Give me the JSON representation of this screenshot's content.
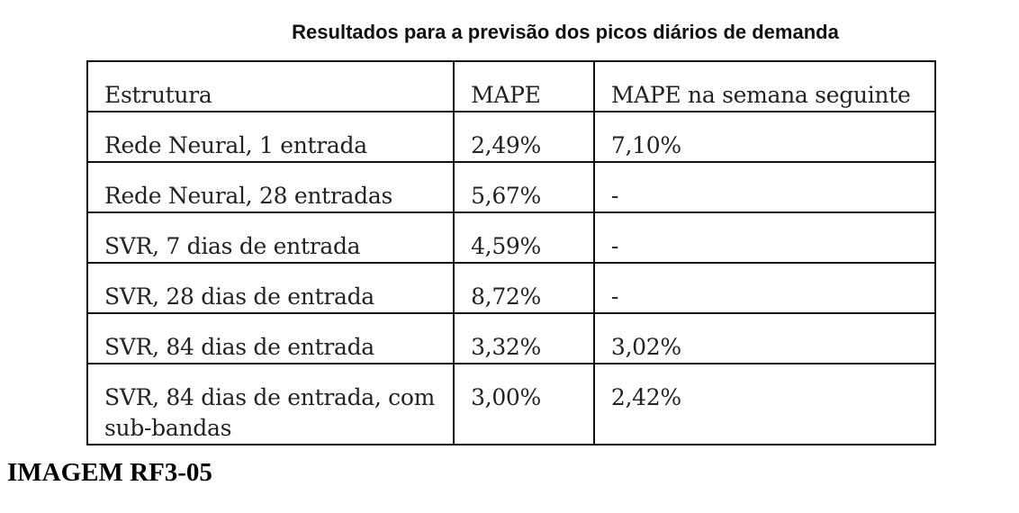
{
  "title": "Resultados para a previsão dos picos diários de demanda",
  "table": {
    "headers": [
      "Estrutura",
      "MAPE",
      "MAPE na semana seguinte"
    ],
    "rows": [
      [
        "Rede Neural, 1 entrada",
        "2,49%",
        "7,10%"
      ],
      [
        "Rede Neural, 28 entradas",
        "5,67%",
        "-"
      ],
      [
        "SVR, 7 dias de entrada",
        "4,59%",
        "-"
      ],
      [
        "SVR, 28 dias de entrada",
        "8,72%",
        "-"
      ],
      [
        "SVR, 84 dias de entrada",
        "3,32%",
        "3,02%"
      ],
      [
        "SVR, 84 dias de entrada, com sub-bandas",
        "3,00%",
        "2,42%"
      ]
    ]
  },
  "caption": "IMAGEM RF3-05"
}
